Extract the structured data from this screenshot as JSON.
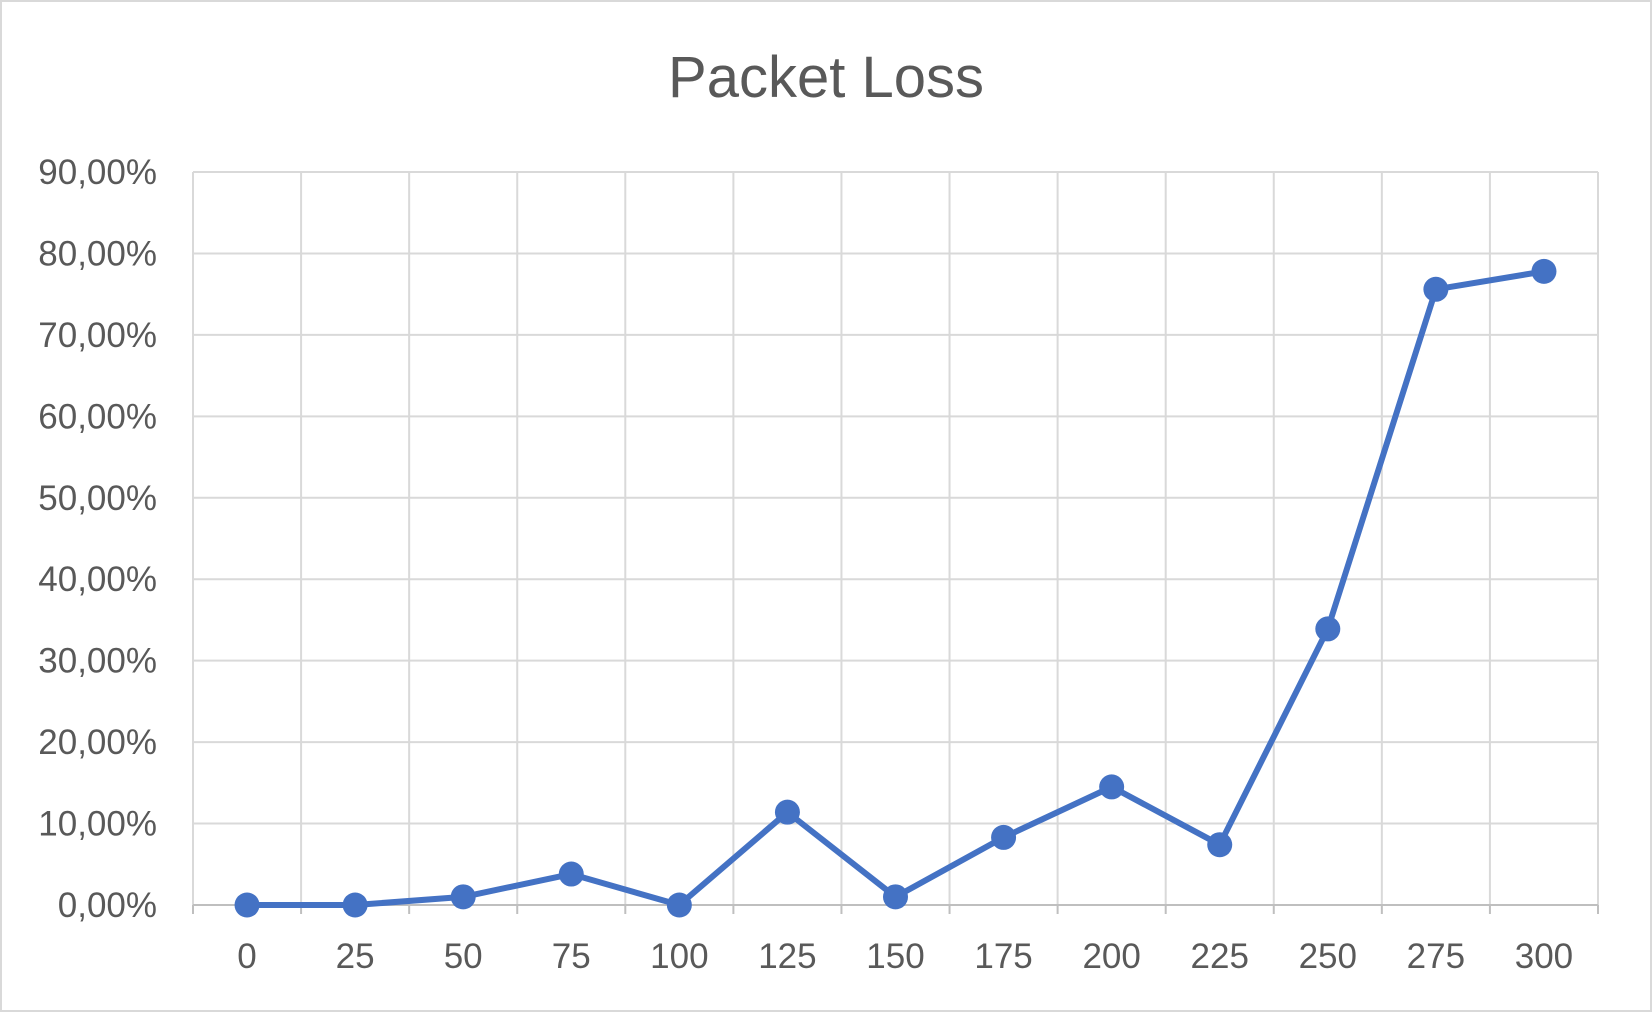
{
  "chart_data": {
    "type": "line",
    "title": "Packet Loss",
    "xlabel": "",
    "ylabel": "",
    "categories": [
      "0",
      "25",
      "50",
      "75",
      "100",
      "125",
      "150",
      "175",
      "200",
      "225",
      "250",
      "275",
      "300"
    ],
    "series": [
      {
        "values": [
          0.0,
          0.0,
          1.0,
          3.8,
          0.0,
          11.4,
          1.0,
          8.3,
          14.5,
          7.4,
          33.9,
          75.6,
          77.8
        ]
      }
    ],
    "ylim": [
      0,
      90
    ],
    "y_ticks": [
      "0,00%",
      "10,00%",
      "20,00%",
      "30,00%",
      "40,00%",
      "50,00%",
      "60,00%",
      "70,00%",
      "80,00%",
      "90,00%"
    ],
    "grid": true,
    "legend": "none",
    "colors": {
      "series": "#4472c4",
      "grid": "#d9d9d9",
      "text": "#595959"
    }
  }
}
